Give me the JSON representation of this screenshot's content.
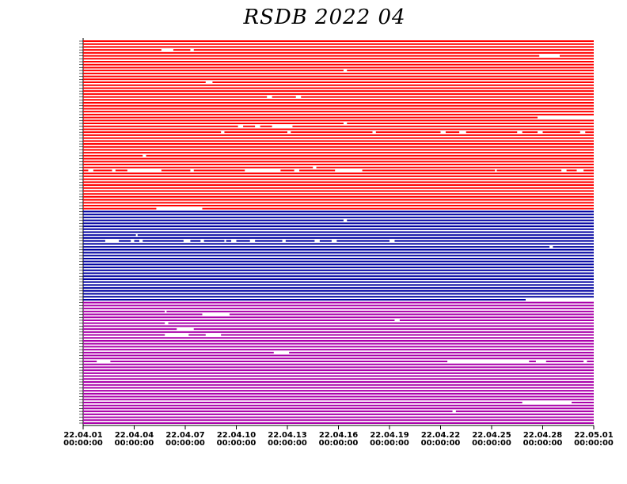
{
  "chart_data": {
    "type": "timeline",
    "title": "RSDB  2022  04",
    "xlim": [
      0,
      30
    ],
    "xticks": [
      {
        "value": 0,
        "label": [
          "22.04.01",
          "00:00:00"
        ]
      },
      {
        "value": 3,
        "label": [
          "22.04.04",
          "00:00:00"
        ]
      },
      {
        "value": 6,
        "label": [
          "22.04.07",
          "00:00:00"
        ]
      },
      {
        "value": 9,
        "label": [
          "22.04.10",
          "00:00:00"
        ]
      },
      {
        "value": 12,
        "label": [
          "22.04.13",
          "00:00:00"
        ]
      },
      {
        "value": 15,
        "label": [
          "22.04.16",
          "00:00:00"
        ]
      },
      {
        "value": 18,
        "label": [
          "22.04.19",
          "00:00:00"
        ]
      },
      {
        "value": 21,
        "label": [
          "22.04.22",
          "00:00:00"
        ]
      },
      {
        "value": 24,
        "label": [
          "22.04.25",
          "00:00:00"
        ]
      },
      {
        "value": 27,
        "label": [
          "22.04.28",
          "00:00:00"
        ]
      },
      {
        "value": 30,
        "label": [
          "22.05.01",
          "00:00:00"
        ]
      }
    ],
    "series": [
      {
        "color": "#ff0000",
        "rows": [
          [
            [
              0,
              30
            ]
          ],
          [
            [
              0,
              30
            ]
          ],
          [
            [
              0,
              30
            ]
          ],
          [
            [
              0,
              4.6
            ],
            [
              5.3,
              6.3
            ],
            [
              6.5,
              30
            ]
          ],
          [
            [
              0,
              30
            ]
          ],
          [
            [
              0,
              26.8
            ],
            [
              28,
              30
            ]
          ],
          [
            [
              0,
              30
            ]
          ],
          [
            [
              0,
              30
            ]
          ],
          [
            [
              0,
              30
            ]
          ],
          [
            [
              0,
              30
            ]
          ],
          [
            [
              0,
              15.3
            ],
            [
              15.5,
              30
            ]
          ],
          [
            [
              0,
              30
            ]
          ],
          [
            [
              0,
              30
            ]
          ],
          [
            [
              0,
              30
            ]
          ],
          [
            [
              0,
              7.2
            ],
            [
              7.6,
              30
            ]
          ],
          [
            [
              0,
              30
            ]
          ],
          [
            [
              0,
              30
            ]
          ],
          [
            [
              0,
              30
            ]
          ],
          [
            [
              0,
              30
            ]
          ],
          [
            [
              0,
              10.8
            ],
            [
              11.1,
              12.5
            ],
            [
              12.8,
              30
            ]
          ],
          [
            [
              0,
              30
            ]
          ],
          [
            [
              0,
              30
            ]
          ],
          [
            [
              0,
              30
            ]
          ],
          [
            [
              0,
              30
            ]
          ],
          [
            [
              0,
              30
            ]
          ],
          [
            [
              0,
              30
            ]
          ],
          [
            [
              0,
              26.7
            ]
          ],
          [
            [
              0,
              30
            ]
          ],
          [
            [
              0,
              15.3
            ],
            [
              15.5,
              30
            ]
          ],
          [
            [
              0,
              9.1
            ],
            [
              9.4,
              10.1
            ],
            [
              10.4,
              11.1
            ],
            [
              12.3,
              30
            ]
          ],
          [
            [
              0,
              30
            ]
          ],
          [
            [
              0,
              8.1
            ],
            [
              8.3,
              12
            ],
            [
              12.2,
              17
            ],
            [
              17.2,
              21
            ],
            [
              21.3,
              22.1
            ],
            [
              22.5,
              25.5
            ],
            [
              25.8,
              26.7
            ],
            [
              27,
              29.2
            ],
            [
              29.5,
              30
            ]
          ],
          [
            [
              0,
              30
            ]
          ],
          [
            [
              0,
              30
            ]
          ],
          [
            [
              0,
              30
            ]
          ],
          [
            [
              0,
              30
            ]
          ],
          [
            [
              0,
              30
            ]
          ],
          [
            [
              0,
              30
            ]
          ],
          [
            [
              0,
              30
            ]
          ],
          [
            [
              0,
              3.5
            ],
            [
              3.7,
              30
            ]
          ],
          [
            [
              0,
              30
            ]
          ],
          [
            [
              0,
              30
            ]
          ],
          [
            [
              0,
              30
            ]
          ],
          [
            [
              0,
              13.5
            ],
            [
              13.7,
              30
            ]
          ],
          [
            [
              0,
              0.3
            ],
            [
              0.6,
              1.7
            ],
            [
              1.9,
              2.6
            ],
            [
              4.6,
              6.3
            ],
            [
              6.5,
              9.5
            ],
            [
              11.6,
              12.4
            ],
            [
              12.7,
              14.8
            ],
            [
              16.4,
              24.2
            ],
            [
              24.3,
              28.1
            ],
            [
              28.4,
              29
            ],
            [
              29.4,
              30
            ]
          ],
          [
            [
              0,
              30
            ]
          ],
          [
            [
              0,
              30
            ]
          ],
          [
            [
              0,
              30
            ]
          ],
          [
            [
              0,
              30
            ]
          ],
          [
            [
              0,
              30
            ]
          ],
          [
            [
              0,
              30
            ]
          ],
          [
            [
              0,
              30
            ]
          ],
          [
            [
              0,
              30
            ]
          ],
          [
            [
              0,
              30
            ]
          ],
          [
            [
              0,
              30
            ]
          ],
          [
            [
              0,
              30
            ]
          ],
          [
            [
              0,
              30
            ]
          ],
          [
            [
              0,
              4.3
            ],
            [
              7,
              30
            ]
          ]
        ]
      },
      {
        "color": "#0000a0",
        "rows": [
          [
            [
              0,
              30
            ]
          ],
          [
            [
              0,
              30
            ]
          ],
          [
            [
              0,
              30
            ]
          ],
          [
            [
              0,
              15.3
            ],
            [
              15.5,
              30
            ]
          ],
          [
            [
              0,
              30
            ]
          ],
          [
            [
              0,
              30
            ]
          ],
          [
            [
              0,
              30
            ]
          ],
          [
            [
              0,
              30
            ]
          ],
          [
            [
              0,
              3.1
            ],
            [
              3.2,
              30
            ]
          ],
          [
            [
              0,
              30
            ]
          ],
          [
            [
              0,
              1.3
            ],
            [
              2.1,
              2.8
            ],
            [
              3,
              3.3
            ],
            [
              3.5,
              5.9
            ],
            [
              6.3,
              6.9
            ],
            [
              7.1,
              8.3
            ],
            [
              8.4,
              8.7
            ],
            [
              9,
              9.8
            ],
            [
              10.1,
              11.7
            ],
            [
              11.9,
              13.6
            ],
            [
              13.9,
              14.6
            ],
            [
              14.9,
              18
            ],
            [
              18.3,
              30
            ]
          ],
          [
            [
              0,
              30
            ]
          ],
          [
            [
              0,
              27.4
            ],
            [
              27.6,
              30
            ]
          ],
          [
            [
              0,
              30
            ]
          ],
          [
            [
              0,
              30
            ]
          ],
          [
            [
              0,
              30
            ]
          ],
          [
            [
              0,
              30
            ]
          ],
          [
            [
              0,
              30
            ]
          ],
          [
            [
              0,
              30
            ]
          ],
          [
            [
              0,
              30
            ]
          ],
          [
            [
              0,
              30
            ]
          ],
          [
            [
              0,
              30
            ]
          ],
          [
            [
              0,
              30
            ]
          ],
          [
            [
              0,
              30
            ]
          ],
          [
            [
              0,
              30
            ]
          ],
          [
            [
              0,
              30
            ]
          ],
          [
            [
              0,
              30
            ]
          ],
          [
            [
              0,
              30
            ]
          ],
          [
            [
              0,
              30
            ]
          ],
          [
            [
              0,
              30
            ]
          ],
          [
            [
              0,
              26
            ]
          ]
        ]
      },
      {
        "color": "#aa00aa",
        "rows": [
          [
            [
              0,
              30
            ]
          ],
          [
            [
              0,
              30
            ]
          ],
          [
            [
              0,
              30
            ]
          ],
          [
            [
              0,
              4.8
            ],
            [
              4.9,
              30
            ]
          ],
          [
            [
              0,
              7
            ],
            [
              8.6,
              30
            ]
          ],
          [
            [
              0,
              30
            ]
          ],
          [
            [
              0,
              18.3
            ],
            [
              18.6,
              30
            ]
          ],
          [
            [
              0,
              4.8
            ],
            [
              5,
              30
            ]
          ],
          [
            [
              0,
              30
            ]
          ],
          [
            [
              0,
              5.5
            ],
            [
              6.5,
              30
            ]
          ],
          [
            [
              0,
              30
            ]
          ],
          [
            [
              0,
              4.8
            ],
            [
              6.2,
              7.2
            ],
            [
              8.1,
              30
            ]
          ],
          [
            [
              0,
              30
            ]
          ],
          [
            [
              0,
              30
            ]
          ],
          [
            [
              0,
              30
            ]
          ],
          [
            [
              0,
              30
            ]
          ],
          [
            [
              0,
              30
            ]
          ],
          [
            [
              0,
              11.2
            ],
            [
              12.1,
              30
            ]
          ],
          [
            [
              0,
              30
            ]
          ],
          [
            [
              0,
              30
            ]
          ],
          [
            [
              0,
              0.8
            ],
            [
              1.6,
              21.4
            ],
            [
              26.2,
              26.6
            ],
            [
              27.2,
              29.4
            ],
            [
              29.6,
              30
            ]
          ],
          [
            [
              0,
              30
            ]
          ],
          [
            [
              0,
              30
            ]
          ],
          [
            [
              0,
              30
            ]
          ],
          [
            [
              0,
              30
            ]
          ],
          [
            [
              0,
              30
            ]
          ],
          [
            [
              0,
              30
            ]
          ],
          [
            [
              0,
              30
            ]
          ],
          [
            [
              0,
              30
            ]
          ],
          [
            [
              0,
              30
            ]
          ],
          [
            [
              0,
              30
            ]
          ],
          [
            [
              0,
              30
            ]
          ],
          [
            [
              0,
              30
            ]
          ],
          [
            [
              0,
              30
            ]
          ],
          [
            [
              0,
              25.8
            ],
            [
              28.7,
              30
            ]
          ],
          [
            [
              0,
              30
            ]
          ],
          [
            [
              0,
              30
            ]
          ],
          [
            [
              0,
              21.7
            ],
            [
              21.9,
              30
            ]
          ],
          [
            [
              0,
              30
            ]
          ],
          [
            [
              0,
              30
            ]
          ],
          [
            [
              0,
              30
            ]
          ],
          [
            [
              0,
              30
            ]
          ]
        ]
      }
    ]
  }
}
